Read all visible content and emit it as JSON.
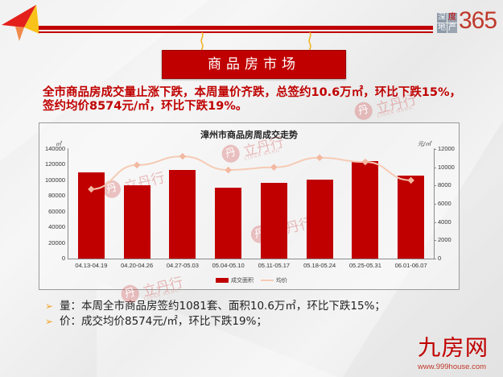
{
  "header": {
    "brand_squares": [
      "深",
      "度",
      "地",
      "产"
    ],
    "brand_number": "365",
    "banner_title": "商品房市场"
  },
  "summary": {
    "text": "全市商品房成交量止涨下跌，本周量价齐跌，总签约10.6万㎡，环比下跌15%，签约均价8574元/㎡，环比下跌19%。"
  },
  "watermark": {
    "logo_char": "丹",
    "text": "立丹行",
    "english": "LIDAN HANG"
  },
  "chart_data": {
    "type": "bar+line",
    "title": "漳州市商品房周成交走势",
    "categories": [
      "04.13-04.19",
      "04.20-04.26",
      "04.27-05.03",
      "05.04-05.10",
      "05.11-05.17",
      "05.18-05.24",
      "05.25-05.31",
      "06.01-06.07"
    ],
    "series": [
      {
        "name": "成交面积",
        "type": "bar",
        "axis": "left",
        "color": "#c00000",
        "values": [
          110000,
          94000,
          113500,
          91000,
          97000,
          101000,
          124700,
          106000
        ]
      },
      {
        "name": "均价",
        "type": "line",
        "axis": "right",
        "color": "#f6cbb5",
        "values": [
          7600,
          10250,
          11200,
          9700,
          10000,
          11050,
          10585,
          8574
        ]
      }
    ],
    "left_axis": {
      "unit": "㎡",
      "ylim": [
        0,
        140000
      ],
      "ticks": [
        "140000",
        "120000",
        "100000",
        "80000",
        "60000",
        "40000",
        "20000",
        "0"
      ]
    },
    "right_axis": {
      "unit": "元/㎡",
      "ylim": [
        0,
        12000
      ],
      "ticks": [
        "12000",
        "10000",
        "8000",
        "6000",
        "4000",
        "2000",
        "0"
      ]
    },
    "legend": {
      "position": "bottom",
      "items": [
        "成交面积",
        "均价"
      ]
    },
    "grid": false
  },
  "bullets": [
    {
      "icon": "arrow-bullet-icon",
      "arrow": "➢",
      "text": "量：本周全市商品房签约1081套、面积10.6万㎡，环比下跌15%；"
    },
    {
      "icon": "arrow-bullet-icon",
      "arrow": "➢",
      "text": "价：成交均价8574元/㎡，环比下跌19%；"
    }
  ],
  "footer": {
    "logo_text": "九房网",
    "url": "www.999house.com"
  },
  "colors": {
    "accent_red": "#c00000",
    "line_peach": "#f6cbb5",
    "bullet_orange": "#f5a020"
  }
}
